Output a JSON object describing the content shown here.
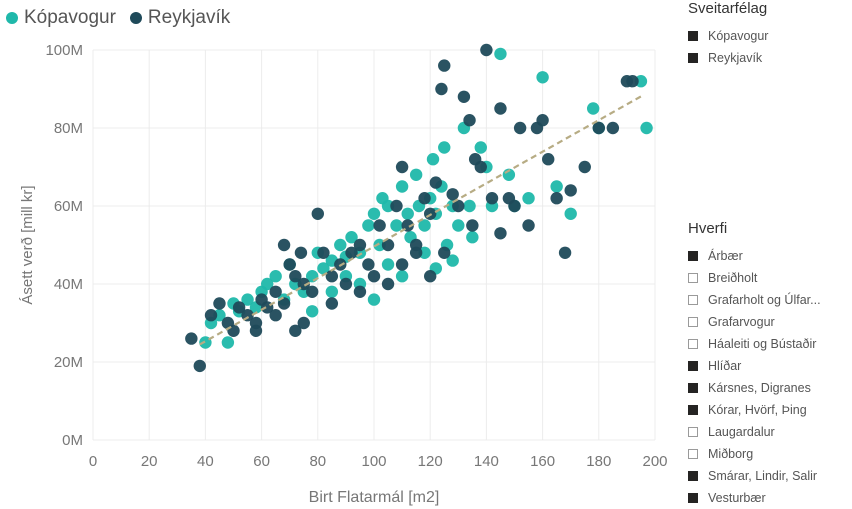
{
  "colors": {
    "kopavogur": "#1fb8aa",
    "reykjavik": "#1f4a5a",
    "trend": "#b7ac84",
    "grid": "#ececec"
  },
  "legend": {
    "items": [
      {
        "label": "Kópavogur",
        "color": "#1fb8aa"
      },
      {
        "label": "Reykjavík",
        "color": "#1f4a5a"
      }
    ]
  },
  "slicers": {
    "sveitarfelag": {
      "title": "Sveitarfélag",
      "items": [
        {
          "label": "Kópavogur",
          "checked": true
        },
        {
          "label": "Reykjavík",
          "checked": true
        }
      ]
    },
    "hverfi": {
      "title": "Hverfi",
      "items": [
        {
          "label": "Árbær",
          "checked": true
        },
        {
          "label": "Breiðholt",
          "checked": false
        },
        {
          "label": "Grafarholt og Úlfar...",
          "checked": false
        },
        {
          "label": "Grafarvogur",
          "checked": false
        },
        {
          "label": "Háaleiti og Bústaðir",
          "checked": false
        },
        {
          "label": "Hlíðar",
          "checked": true
        },
        {
          "label": "Kársnes, Digranes",
          "checked": true
        },
        {
          "label": "Kórar, Hvörf, Þing",
          "checked": true
        },
        {
          "label": "Laugardalur",
          "checked": false
        },
        {
          "label": "Miðborg",
          "checked": false
        },
        {
          "label": "Smárar, Lindir, Salir",
          "checked": true
        },
        {
          "label": "Vesturbær",
          "checked": true
        }
      ]
    }
  },
  "chart_data": {
    "type": "scatter",
    "title": "",
    "xlabel": "Birt Flatarmál [m2]",
    "ylabel": "Ásett verð [mill kr]",
    "xlim": [
      0,
      200
    ],
    "ylim": [
      0,
      100
    ],
    "x_ticks": [
      0,
      20,
      40,
      60,
      80,
      100,
      120,
      140,
      160,
      180,
      200
    ],
    "y_ticks": [
      0,
      20,
      40,
      60,
      80,
      100
    ],
    "x_tick_labels": [
      "0",
      "20",
      "40",
      "60",
      "80",
      "100",
      "120",
      "140",
      "160",
      "180",
      "200"
    ],
    "y_tick_labels": [
      "0M",
      "20M",
      "40M",
      "60M",
      "80M",
      "100M"
    ],
    "grid": true,
    "legend_position": "top-left",
    "trendline": {
      "x": [
        38,
        196
      ],
      "y": [
        24.5,
        88.5
      ]
    },
    "series": [
      {
        "name": "Kópavogur",
        "points": [
          [
            40,
            25
          ],
          [
            42,
            30
          ],
          [
            45,
            32
          ],
          [
            48,
            25
          ],
          [
            50,
            35
          ],
          [
            52,
            33
          ],
          [
            55,
            36
          ],
          [
            58,
            34
          ],
          [
            60,
            38
          ],
          [
            62,
            40
          ],
          [
            65,
            42
          ],
          [
            68,
            36
          ],
          [
            70,
            45
          ],
          [
            72,
            40
          ],
          [
            75,
            38
          ],
          [
            78,
            33
          ],
          [
            80,
            48
          ],
          [
            82,
            44
          ],
          [
            85,
            46
          ],
          [
            88,
            50
          ],
          [
            90,
            42
          ],
          [
            92,
            52
          ],
          [
            95,
            48
          ],
          [
            98,
            55
          ],
          [
            100,
            58
          ],
          [
            102,
            50
          ],
          [
            103,
            62
          ],
          [
            105,
            60
          ],
          [
            108,
            55
          ],
          [
            110,
            65
          ],
          [
            112,
            58
          ],
          [
            113,
            52
          ],
          [
            115,
            68
          ],
          [
            116,
            60
          ],
          [
            118,
            55
          ],
          [
            120,
            62
          ],
          [
            121,
            72
          ],
          [
            122,
            58
          ],
          [
            124,
            65
          ],
          [
            125,
            75
          ],
          [
            126,
            50
          ],
          [
            128,
            60
          ],
          [
            130,
            55
          ],
          [
            132,
            80
          ],
          [
            134,
            60
          ],
          [
            135,
            52
          ],
          [
            138,
            75
          ],
          [
            140,
            70
          ],
          [
            142,
            60
          ],
          [
            145,
            99
          ],
          [
            148,
            68
          ],
          [
            150,
            60
          ],
          [
            155,
            62
          ],
          [
            160,
            93
          ],
          [
            165,
            65
          ],
          [
            170,
            58
          ],
          [
            178,
            85
          ],
          [
            180,
            80
          ],
          [
            195,
            92
          ],
          [
            197,
            80
          ],
          [
            90,
            47
          ],
          [
            95,
            40
          ],
          [
            105,
            45
          ],
          [
            118,
            48
          ],
          [
            85,
            38
          ],
          [
            78,
            42
          ],
          [
            110,
            42
          ],
          [
            100,
            36
          ],
          [
            122,
            44
          ],
          [
            128,
            46
          ]
        ]
      },
      {
        "name": "Reykjavík",
        "points": [
          [
            35,
            26
          ],
          [
            38,
            19
          ],
          [
            42,
            32
          ],
          [
            45,
            35
          ],
          [
            48,
            30
          ],
          [
            50,
            28
          ],
          [
            52,
            34
          ],
          [
            55,
            32
          ],
          [
            58,
            30
          ],
          [
            60,
            36
          ],
          [
            62,
            34
          ],
          [
            65,
            38
          ],
          [
            68,
            50
          ],
          [
            70,
            45
          ],
          [
            72,
            42
          ],
          [
            74,
            48
          ],
          [
            75,
            40
          ],
          [
            78,
            38
          ],
          [
            80,
            58
          ],
          [
            82,
            48
          ],
          [
            85,
            42
          ],
          [
            88,
            45
          ],
          [
            90,
            40
          ],
          [
            92,
            48
          ],
          [
            95,
            50
          ],
          [
            98,
            45
          ],
          [
            100,
            42
          ],
          [
            102,
            55
          ],
          [
            105,
            50
          ],
          [
            108,
            60
          ],
          [
            110,
            70
          ],
          [
            112,
            55
          ],
          [
            115,
            50
          ],
          [
            118,
            62
          ],
          [
            120,
            58
          ],
          [
            122,
            66
          ],
          [
            124,
            90
          ],
          [
            125,
            96
          ],
          [
            128,
            63
          ],
          [
            130,
            60
          ],
          [
            132,
            88
          ],
          [
            134,
            82
          ],
          [
            136,
            72
          ],
          [
            138,
            70
          ],
          [
            140,
            100
          ],
          [
            142,
            62
          ],
          [
            145,
            85
          ],
          [
            148,
            62
          ],
          [
            150,
            60
          ],
          [
            152,
            80
          ],
          [
            155,
            55
          ],
          [
            158,
            80
          ],
          [
            160,
            82
          ],
          [
            162,
            72
          ],
          [
            165,
            62
          ],
          [
            168,
            48
          ],
          [
            170,
            64
          ],
          [
            175,
            70
          ],
          [
            180,
            80
          ],
          [
            185,
            80
          ],
          [
            190,
            92
          ],
          [
            192,
            92
          ],
          [
            68,
            35
          ],
          [
            75,
            30
          ],
          [
            85,
            35
          ],
          [
            95,
            38
          ],
          [
            105,
            40
          ],
          [
            115,
            48
          ],
          [
            125,
            48
          ],
          [
            135,
            55
          ],
          [
            145,
            53
          ],
          [
            65,
            32
          ],
          [
            72,
            28
          ],
          [
            58,
            28
          ],
          [
            110,
            45
          ],
          [
            120,
            42
          ]
        ]
      }
    ]
  }
}
